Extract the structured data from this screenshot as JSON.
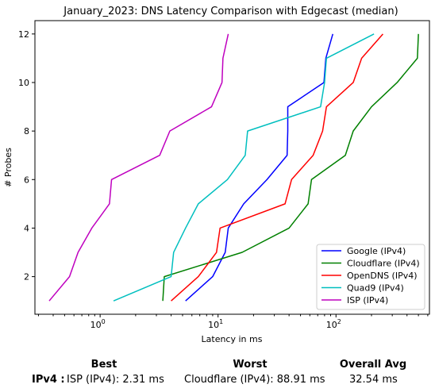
{
  "chart_data": {
    "type": "line",
    "title": "January_2023: DNS Latency Comparison with Edgecast (median)",
    "xlabel": "Latency in ms",
    "ylabel": "# Probes",
    "xscale": "log",
    "xlim": [
      0.28,
      620
    ],
    "ylim": [
      0.45,
      12.55
    ],
    "yticks": [
      2,
      4,
      6,
      8,
      10,
      12
    ],
    "xtick_labels": [
      "10^0",
      "10^1",
      "10^2"
    ],
    "grid": false,
    "legend_position": "lower right",
    "series": [
      {
        "name": "Google (IPv4)",
        "color": "#0000ff",
        "x": [
          5.3,
          9.0,
          11.5,
          12.2,
          16.5,
          26.0,
          38.5,
          39.0,
          39.0,
          79.0,
          82.0,
          94.0
        ],
        "y": [
          1,
          2,
          3,
          4,
          5,
          6,
          7,
          8,
          9,
          10,
          11,
          12
        ]
      },
      {
        "name": "Cloudflare (IPv4)",
        "color": "#008000",
        "x": [
          3.4,
          3.5,
          16.0,
          40.0,
          58.0,
          62.0,
          120.0,
          140.0,
          200.0,
          330.0,
          490.0,
          500.0
        ],
        "y": [
          1,
          2,
          3,
          4,
          5,
          6,
          7,
          8,
          9,
          10,
          11,
          12
        ]
      },
      {
        "name": "OpenDNS (IPv4)",
        "color": "#ff0000",
        "x": [
          4.0,
          6.8,
          9.7,
          10.4,
          37.0,
          42.0,
          64.0,
          77.0,
          83.0,
          140.0,
          165.0,
          250.0
        ],
        "y": [
          1,
          2,
          3,
          4,
          5,
          6,
          7,
          8,
          9,
          10,
          11,
          12
        ]
      },
      {
        "name": "Quad9 (IPv4)",
        "color": "#00bfbf",
        "x": [
          1.3,
          4.0,
          4.2,
          5.3,
          6.8,
          12.0,
          17.0,
          17.8,
          74.0,
          80.0,
          83.0,
          210.0
        ],
        "y": [
          1,
          2,
          3,
          4,
          5,
          6,
          7,
          8,
          9,
          10,
          11,
          12
        ]
      },
      {
        "name": "ISP (IPv4)",
        "color": "#bf00bf",
        "x": [
          0.37,
          0.55,
          0.65,
          0.85,
          1.2,
          1.25,
          3.2,
          3.9,
          8.8,
          10.8,
          11.0,
          12.2
        ],
        "y": [
          1,
          2,
          3,
          4,
          5,
          6,
          7,
          8,
          9,
          10,
          11,
          12
        ]
      }
    ]
  },
  "summary": {
    "headers": {
      "best": "Best",
      "worst": "Worst",
      "avg": "Overall Avg"
    },
    "row_label": "IPv4 :",
    "best": "ISP (IPv4): 2.31 ms",
    "worst": "Cloudflare (IPv4): 88.91 ms",
    "avg": "32.54 ms"
  }
}
